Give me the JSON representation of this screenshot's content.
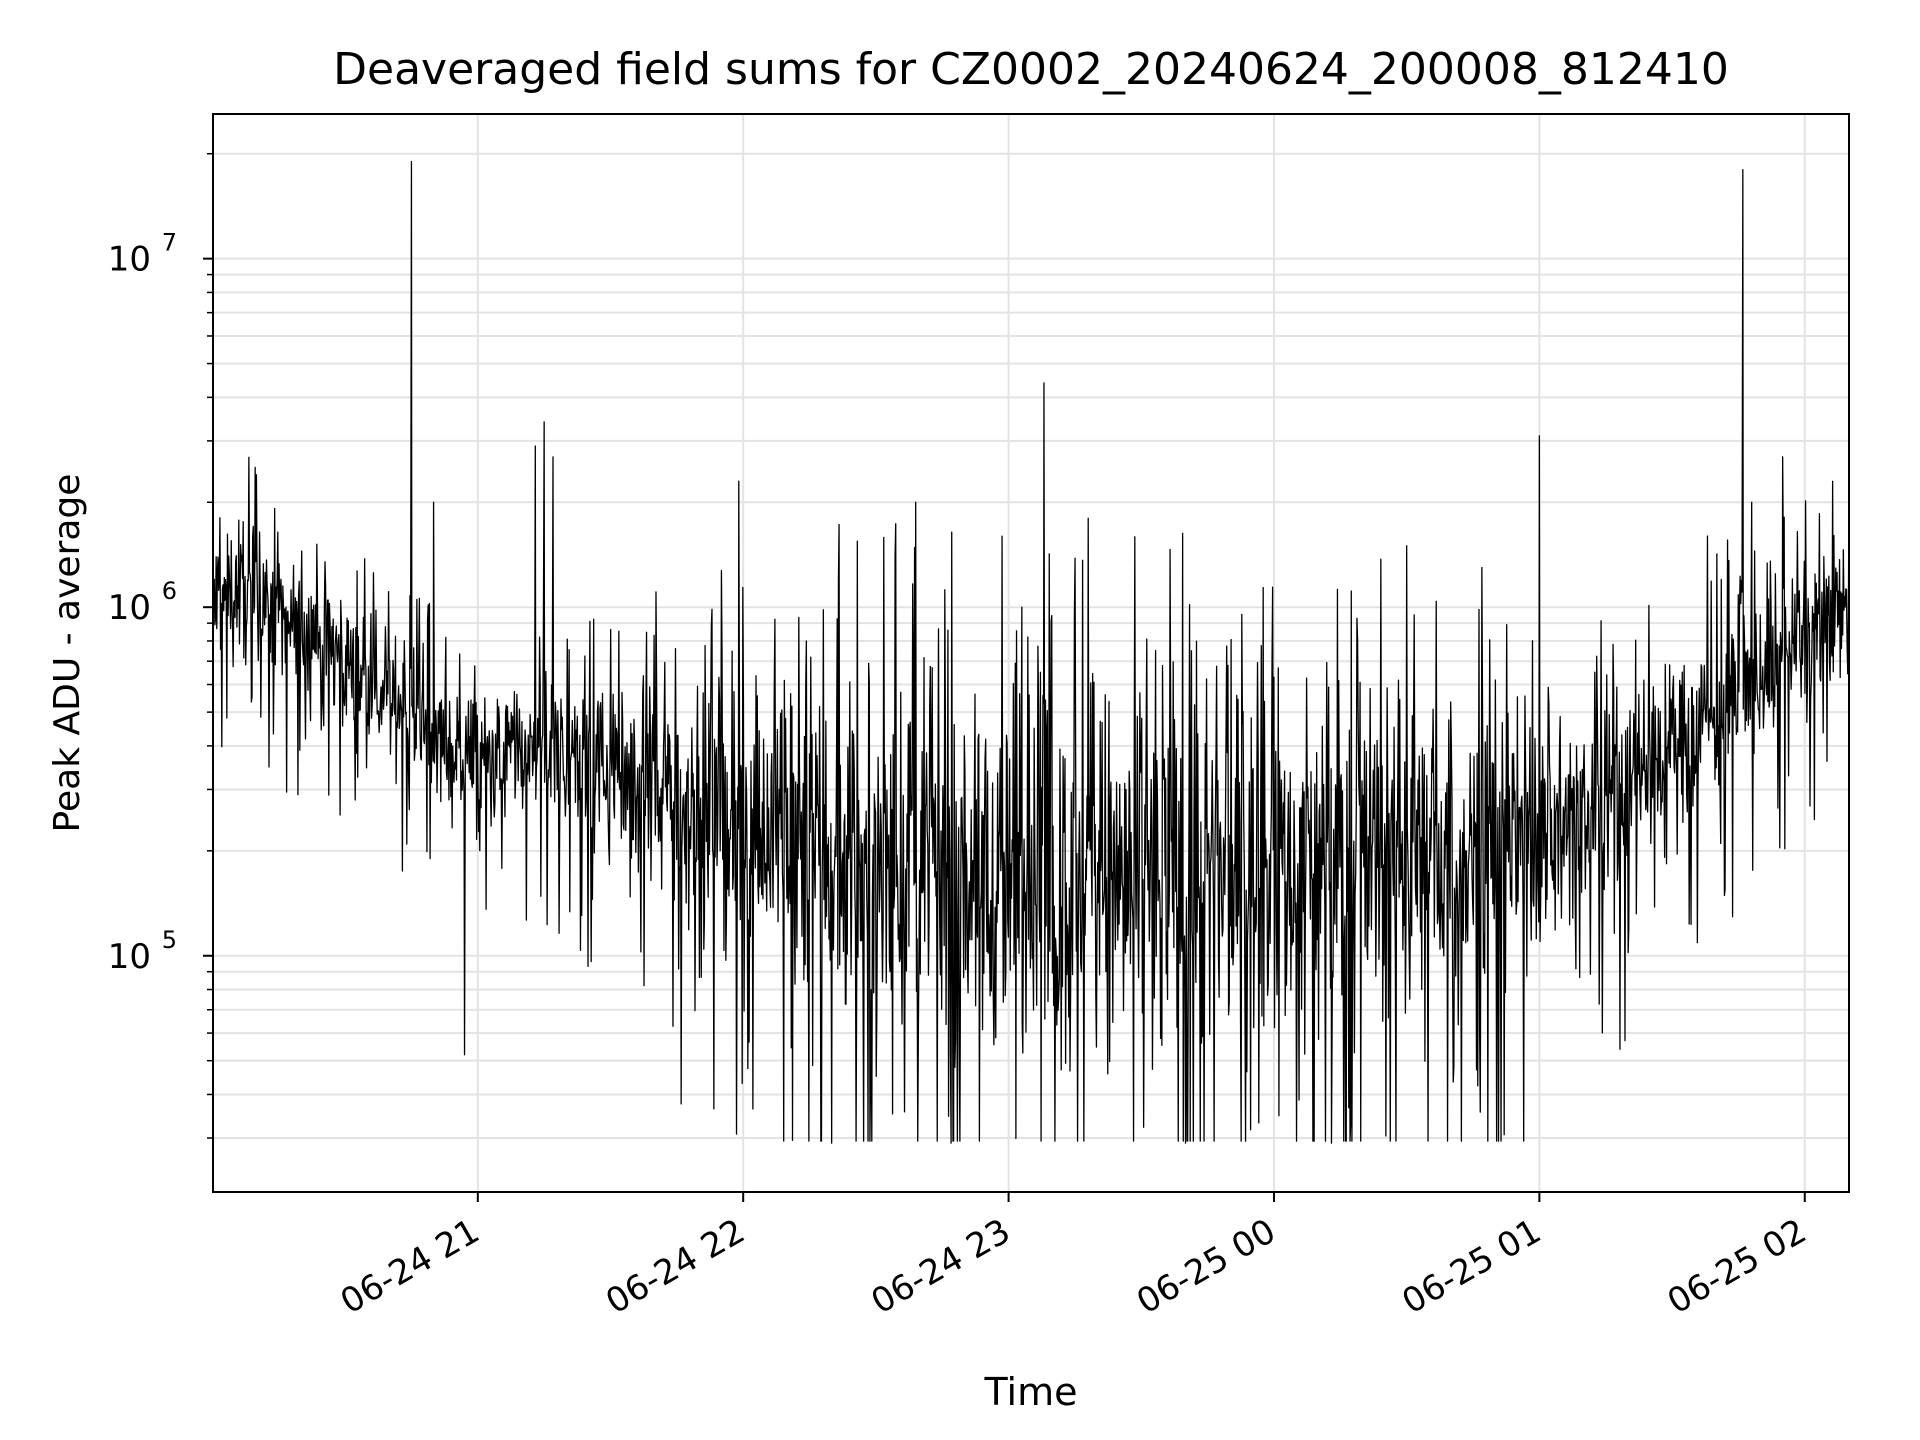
{
  "chart_data": {
    "type": "line",
    "title": "Deaveraged field sums for CZ0002_20240624_200008_812410",
    "xlabel": "Time",
    "ylabel": "Peak ADU - average",
    "yscale": "log",
    "ylim": [
      21000,
      26000000
    ],
    "xlim": [
      "2024-06-24 20:00:08",
      "2024-06-25 02:10:00"
    ],
    "grid": true,
    "line_color": "#000000",
    "x_ticks": [
      {
        "value": "2024-06-24 21:00",
        "label": "06-24 21"
      },
      {
        "value": "2024-06-24 22:00",
        "label": "06-24 22"
      },
      {
        "value": "2024-06-24 23:00",
        "label": "06-24 23"
      },
      {
        "value": "2024-06-25 00:00",
        "label": "06-25 00"
      },
      {
        "value": "2024-06-25 01:00",
        "label": "06-25 01"
      },
      {
        "value": "2024-06-25 02:00",
        "label": "06-25 02"
      }
    ],
    "y_ticks": [
      {
        "value": 100000,
        "base": "10",
        "exp": "5"
      },
      {
        "value": 1000000,
        "base": "10",
        "exp": "6"
      },
      {
        "value": 10000000,
        "base": "10",
        "exp": "7"
      }
    ],
    "series": [
      {
        "points": [
          [
            "2024-06-24 20:00:08",
            1000000
          ],
          [
            "2024-06-24 20:05",
            1150000
          ],
          [
            "2024-06-24 20:10",
            1050000
          ],
          [
            "2024-06-24 20:15",
            950000
          ],
          [
            "2024-06-24 20:20",
            900000
          ],
          [
            "2024-06-24 20:25",
            820000
          ],
          [
            "2024-06-24 20:30",
            700000
          ],
          [
            "2024-06-24 20:35",
            620000
          ],
          [
            "2024-06-24 20:40",
            560000
          ],
          [
            "2024-06-24 20:45",
            500000
          ],
          [
            "2024-06-24 20:50",
            430000
          ],
          [
            "2024-06-24 20:55",
            380000
          ],
          [
            "2024-06-24 21:00",
            360000
          ],
          [
            "2024-06-24 21:10",
            380000
          ],
          [
            "2024-06-24 21:20",
            370000
          ],
          [
            "2024-06-24 21:30",
            340000
          ],
          [
            "2024-06-24 21:40",
            300000
          ],
          [
            "2024-06-24 21:50",
            260000
          ],
          [
            "2024-06-24 22:00",
            240000
          ],
          [
            "2024-06-24 22:15",
            210000
          ],
          [
            "2024-06-24 22:30",
            190000
          ],
          [
            "2024-06-24 22:45",
            175000
          ],
          [
            "2024-06-24 23:00",
            170000
          ],
          [
            "2024-06-24 23:15",
            165000
          ],
          [
            "2024-06-24 23:30",
            160000
          ],
          [
            "2024-06-24 23:45",
            165000
          ],
          [
            "2024-06-25 00:00",
            175000
          ],
          [
            "2024-06-25 00:15",
            185000
          ],
          [
            "2024-06-25 00:30",
            190000
          ],
          [
            "2024-06-25 00:45",
            200000
          ],
          [
            "2024-06-25 01:00",
            220000
          ],
          [
            "2024-06-25 01:10",
            250000
          ],
          [
            "2024-06-25 01:20",
            300000
          ],
          [
            "2024-06-25 01:30",
            380000
          ],
          [
            "2024-06-25 01:40",
            500000
          ],
          [
            "2024-06-25 01:50",
            650000
          ],
          [
            "2024-06-25 02:00",
            800000
          ],
          [
            "2024-06-25 02:10",
            1000000
          ]
        ],
        "noise_decades": [
          0.18,
          0.16,
          0.16,
          0.16,
          0.2,
          0.3,
          0.4,
          0.42,
          0.45,
          0.45,
          0.45,
          0.42,
          0.4,
          0.35,
          0.28,
          0.22,
          0.2,
          0.18
        ],
        "spikes": [
          [
            "2024-06-24 20:45",
            19000000
          ],
          [
            "2024-06-24 20:50",
            2000000
          ],
          [
            "2024-06-24 21:13",
            2900000
          ],
          [
            "2024-06-24 21:15",
            3400000
          ],
          [
            "2024-06-24 21:17",
            2700000
          ],
          [
            "2024-06-24 20:57",
            52000
          ],
          [
            "2024-06-24 21:59",
            2300000
          ],
          [
            "2024-06-24 22:39",
            2000000
          ],
          [
            "2024-06-24 23:08",
            4400000
          ],
          [
            "2024-06-24 23:18",
            1800000
          ],
          [
            "2024-06-24 23:03",
            1000000
          ],
          [
            "2024-06-24 22:20",
            29000
          ],
          [
            "2024-06-24 22:47",
            29000
          ],
          [
            "2024-06-24 23:40",
            29000
          ],
          [
            "2024-06-25 00:13",
            29000
          ],
          [
            "2024-06-25 00:30",
            1500000
          ],
          [
            "2024-06-25 01:00",
            3100000
          ],
          [
            "2024-06-25 00:47",
            1300000
          ],
          [
            "2024-06-25 01:46",
            18000000
          ],
          [
            "2024-06-25 01:48",
            2000000
          ],
          [
            "2024-06-25 01:55",
            2700000
          ],
          [
            "2024-06-25 01:38",
            1600000
          ],
          [
            "2024-06-25 01:41",
            210000
          ],
          [
            "2024-06-25 02:10",
            2200000
          ]
        ]
      }
    ]
  }
}
